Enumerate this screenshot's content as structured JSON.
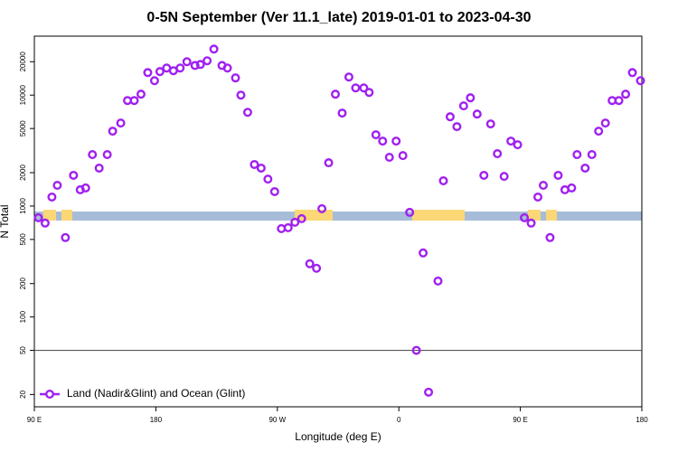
{
  "chart_data": {
    "type": "scatter",
    "title": "0-5N September (Ver 11.1_late)   2019-01-01 to 2023-04-30",
    "x_label": "Longitude (deg E)",
    "y_label": "N Total",
    "xlim": [
      90,
      540
    ],
    "ylim": [
      15.5,
      34000
    ],
    "log_y": true,
    "xticks": [
      {
        "value": 90,
        "label": "90 E"
      },
      180,
      {
        "value": 270,
        "label": "90 W"
      },
      {
        "value": 360,
        "label": "0"
      },
      {
        "value": 450,
        "label": "90 E"
      },
      {
        "value": 540,
        "label": "180"
      }
    ],
    "yticks": [
      20,
      50,
      100,
      200,
      500,
      1000,
      2000,
      5000,
      10000,
      20000
    ],
    "reference_line": 50,
    "legend": "bottom-left",
    "series": [
      {
        "name": "Land (Nadir&Glint) and Ocean (Glint)",
        "color": "#a020f0",
        "x": [
          93,
          98,
          103,
          107,
          113,
          119,
          124,
          128,
          133,
          138,
          144,
          148,
          154,
          159,
          164,
          169,
          174,
          179,
          183,
          188,
          193,
          198,
          203,
          209,
          213,
          218,
          223,
          229,
          233,
          239,
          243,
          248,
          253,
          258,
          263,
          268,
          273,
          278,
          283,
          288,
          294,
          299,
          303,
          308,
          313,
          318,
          323,
          328,
          334,
          338,
          343,
          348,
          353,
          358,
          363,
          368,
          373,
          378,
          382,
          389,
          393,
          398,
          403,
          408,
          413,
          418,
          423,
          428,
          433,
          438,
          443,
          448,
          453,
          458,
          463,
          467,
          472,
          478,
          483,
          488,
          492,
          498,
          503,
          508,
          513,
          518,
          523,
          528,
          533,
          539
        ],
        "values": [
          784,
          702,
          1206,
          1538,
          520,
          1892,
          1402,
          1456,
          2910,
          2198,
          2910,
          4732,
          5600,
          8940,
          8940,
          10200,
          15960,
          13500,
          16300,
          17540,
          16600,
          17540,
          20000,
          18500,
          18900,
          20400,
          26000,
          18500,
          17540,
          14300,
          10000,
          7000,
          2370,
          2198,
          1750,
          1350,
          626,
          638,
          714,
          770,
          302,
          275,
          946,
          2456,
          10200,
          6890,
          14560,
          11610,
          11610,
          10580,
          4390,
          3850,
          2750,
          3850,
          2850,
          877,
          50,
          378,
          21,
          211,
          1690,
          6380,
          5200,
          8000,
          9460,
          6750,
          1892,
          5500,
          2965,
          1850,
          3850,
          3570,
          784,
          702,
          1206,
          1538,
          520,
          1892,
          1402,
          1456,
          2910,
          2198,
          2910,
          4732,
          5600,
          8940,
          8940,
          10200,
          15960,
          13500
        ]
      }
    ]
  }
}
